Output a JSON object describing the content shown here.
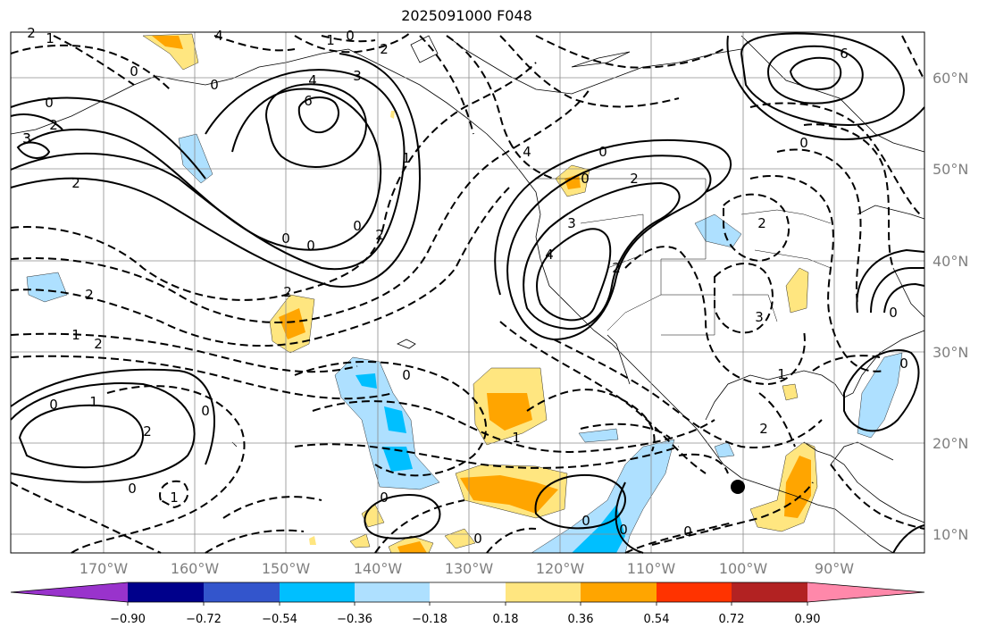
{
  "title": "2025091000 F048",
  "colors": {
    "background": "#ffffff",
    "axis_label": "#7f7f7f",
    "contour": "#000000",
    "colorbar": [
      "#9933cc",
      "#00008b",
      "#3355cc",
      "#00bfff",
      "#aee0ff",
      "#ffffff",
      "#ffe680",
      "#ffa500",
      "#ff3300",
      "#b22222",
      "#ff88aa"
    ]
  },
  "axes": {
    "lon_ticks": [
      "170°W",
      "160°W",
      "150°W",
      "140°W",
      "130°W",
      "120°W",
      "110°W",
      "100°W",
      "90°W"
    ],
    "lat_ticks": [
      "60°N",
      "50°N",
      "40°N",
      "30°N",
      "20°N",
      "10°N"
    ]
  },
  "colorbar": {
    "tick_labels": [
      "−0.90",
      "−0.72",
      "−0.54",
      "−0.36",
      "−0.18",
      "0.18",
      "0.36",
      "0.54",
      "0.72",
      "0.90"
    ],
    "extend": "both"
  },
  "contour_labels": [
    "2",
    "1",
    "4",
    "1",
    "0",
    "3",
    "0",
    "6",
    "4",
    "3",
    "0",
    "0",
    "2",
    "2",
    "3",
    "2",
    "0",
    "2",
    "0",
    "0",
    "1",
    "2",
    "4",
    "0",
    "2",
    "3",
    "2",
    "4",
    "0",
    "2",
    "3",
    "0",
    "6",
    "0",
    "2",
    "2",
    "2",
    "1",
    "0",
    "1",
    "2",
    "0",
    "0",
    "1",
    "0",
    "0",
    "0",
    "1",
    "0",
    "0",
    "0",
    "1",
    "0"
  ],
  "marker": {
    "type": "point",
    "lon": "100°W",
    "lat": "15°N",
    "icon": "black-dot"
  }
}
